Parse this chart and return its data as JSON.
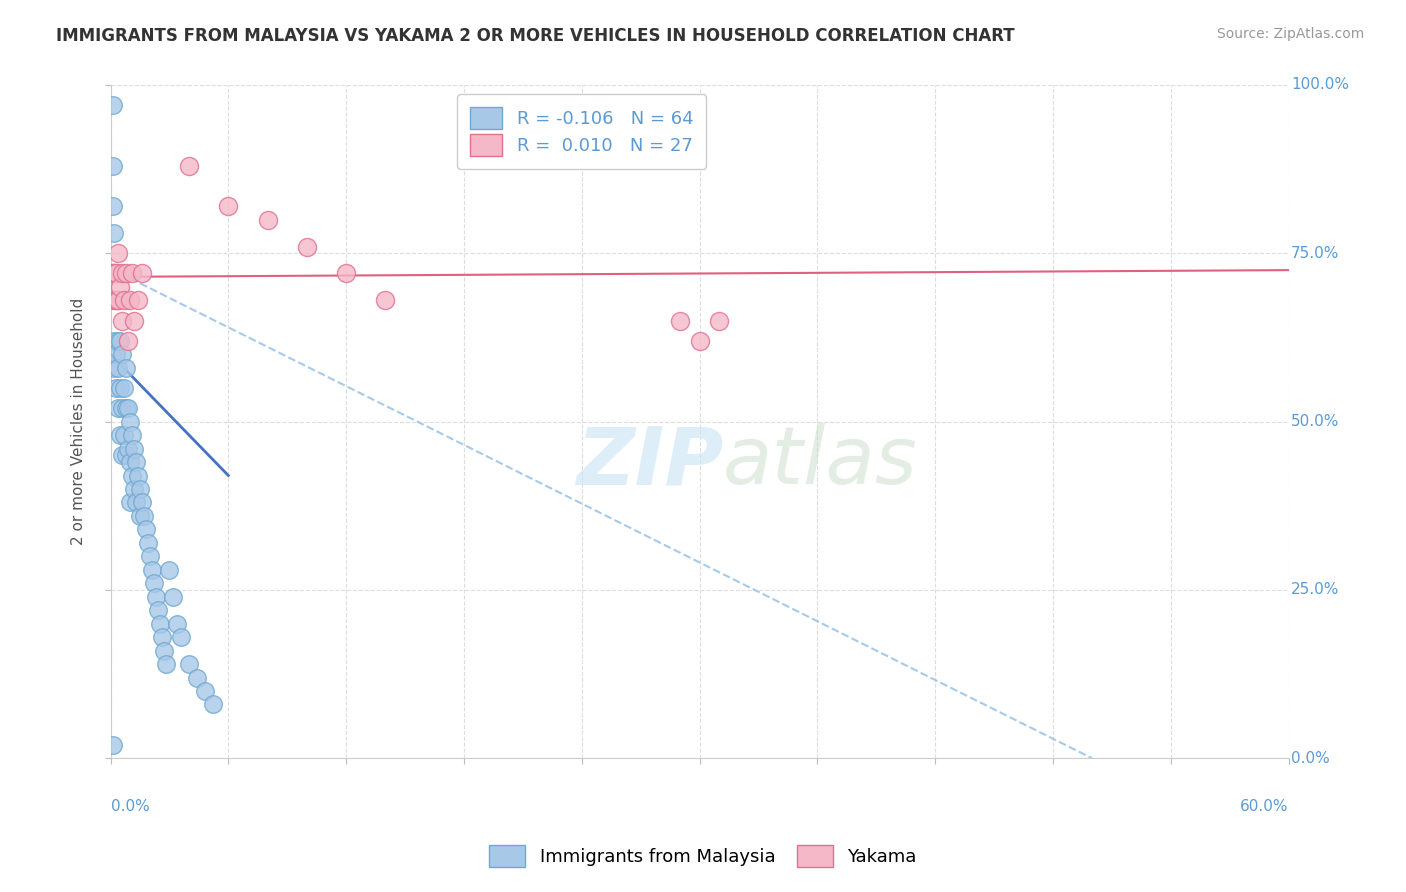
{
  "title": "IMMIGRANTS FROM MALAYSIA VS YAKAMA 2 OR MORE VEHICLES IN HOUSEHOLD CORRELATION CHART",
  "source": "Source: ZipAtlas.com",
  "ylabel": "2 or more Vehicles in Household",
  "legend_bottom": [
    "Immigrants from Malaysia",
    "Yakama"
  ],
  "xlim": [
    0.0,
    0.6
  ],
  "ylim": [
    0.0,
    1.0
  ],
  "xticks": [
    0.0,
    0.06,
    0.12,
    0.18,
    0.24,
    0.3,
    0.36,
    0.42,
    0.48,
    0.54,
    0.6
  ],
  "xtick_show": [
    0.0,
    0.6
  ],
  "xticklabels_show": [
    "0.0%",
    "60.0%"
  ],
  "yticks": [
    0.0,
    0.25,
    0.5,
    0.75,
    1.0
  ],
  "yticklabels": [
    "0.0%",
    "25.0%",
    "50.0%",
    "75.0%",
    "100.0%"
  ],
  "blue_color": "#a8c8e8",
  "blue_edge": "#6fa8d0",
  "pink_color": "#f4b8c8",
  "pink_edge": "#e07090",
  "trend_blue": "#4472C4",
  "trend_pink": "#e06080",
  "trend_dash_color": "#9ec4e8",
  "R_blue": -0.106,
  "N_blue": 64,
  "R_pink": 0.01,
  "N_pink": 27,
  "blue_x": [
    0.001,
    0.001,
    0.001,
    0.001,
    0.002,
    0.002,
    0.002,
    0.002,
    0.002,
    0.003,
    0.003,
    0.003,
    0.003,
    0.004,
    0.004,
    0.004,
    0.004,
    0.005,
    0.005,
    0.005,
    0.006,
    0.006,
    0.006,
    0.007,
    0.007,
    0.008,
    0.008,
    0.008,
    0.009,
    0.009,
    0.01,
    0.01,
    0.01,
    0.011,
    0.011,
    0.012,
    0.012,
    0.013,
    0.013,
    0.014,
    0.015,
    0.015,
    0.016,
    0.017,
    0.018,
    0.019,
    0.02,
    0.021,
    0.022,
    0.023,
    0.024,
    0.025,
    0.026,
    0.027,
    0.028,
    0.03,
    0.032,
    0.034,
    0.036,
    0.04,
    0.044,
    0.048,
    0.052,
    0.001
  ],
  "blue_y": [
    0.97,
    0.88,
    0.82,
    0.72,
    0.78,
    0.72,
    0.68,
    0.62,
    0.58,
    0.72,
    0.68,
    0.6,
    0.55,
    0.68,
    0.62,
    0.58,
    0.52,
    0.62,
    0.55,
    0.48,
    0.6,
    0.52,
    0.45,
    0.55,
    0.48,
    0.58,
    0.52,
    0.45,
    0.52,
    0.46,
    0.5,
    0.44,
    0.38,
    0.48,
    0.42,
    0.46,
    0.4,
    0.44,
    0.38,
    0.42,
    0.4,
    0.36,
    0.38,
    0.36,
    0.34,
    0.32,
    0.3,
    0.28,
    0.26,
    0.24,
    0.22,
    0.2,
    0.18,
    0.16,
    0.14,
    0.28,
    0.24,
    0.2,
    0.18,
    0.14,
    0.12,
    0.1,
    0.08,
    0.02
  ],
  "pink_x": [
    0.001,
    0.002,
    0.002,
    0.003,
    0.003,
    0.004,
    0.004,
    0.005,
    0.006,
    0.006,
    0.007,
    0.008,
    0.009,
    0.01,
    0.011,
    0.012,
    0.014,
    0.016,
    0.04,
    0.06,
    0.08,
    0.1,
    0.12,
    0.14,
    0.29,
    0.3,
    0.31
  ],
  "pink_y": [
    0.72,
    0.72,
    0.68,
    0.72,
    0.68,
    0.75,
    0.68,
    0.7,
    0.72,
    0.65,
    0.68,
    0.72,
    0.62,
    0.68,
    0.72,
    0.65,
    0.68,
    0.72,
    0.88,
    0.82,
    0.8,
    0.76,
    0.72,
    0.68,
    0.65,
    0.62,
    0.65
  ],
  "blue_trend_x": [
    0.0,
    0.06
  ],
  "blue_trend_y": [
    0.6,
    0.42
  ],
  "pink_trend_x": [
    0.0,
    0.6
  ],
  "pink_trend_y": [
    0.715,
    0.725
  ],
  "dash_trend_x": [
    0.005,
    0.5
  ],
  "dash_trend_y": [
    0.72,
    0.0
  ],
  "watermark_zip": "ZIP",
  "watermark_atlas": "atlas",
  "background_color": "#ffffff",
  "grid_color": "#dddddd"
}
